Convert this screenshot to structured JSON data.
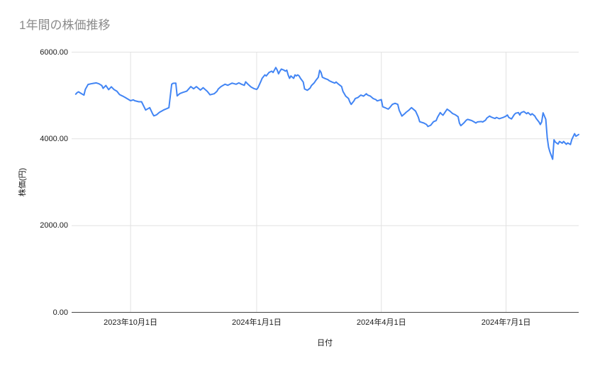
{
  "page": {
    "background": "#ffffff"
  },
  "chart_data": {
    "type": "line",
    "title": "1年間の株価推移",
    "xlabel": "日付",
    "ylabel": "株価(円)",
    "legend": "none",
    "grid": true,
    "ylim": [
      0,
      6000
    ],
    "x_range": [
      "2023-08-19",
      "2024-08-23"
    ],
    "y_ticks": [
      {
        "value": 0,
        "label": "0.00"
      },
      {
        "value": 2000,
        "label": "2000.00"
      },
      {
        "value": 4000,
        "label": "4000.00"
      },
      {
        "value": 6000,
        "label": "6000.00"
      }
    ],
    "x_ticks": [
      {
        "date": "2023-10-01",
        "label": "2023年10月1日"
      },
      {
        "date": "2024-01-01",
        "label": "2024年1月1日"
      },
      {
        "date": "2024-04-01",
        "label": "2024年4月1日"
      },
      {
        "date": "2024-07-01",
        "label": "2024年7月1日"
      }
    ],
    "line_color": "#4285f4",
    "grid_color": "#e2e2e2",
    "axis_line_color": "#444444",
    "title_color": "#8b8b8b",
    "label_color": "#1a1a1a",
    "series": [
      {
        "name": "株価",
        "points": [
          [
            "2023-08-22",
            5030
          ],
          [
            "2023-08-23",
            5065
          ],
          [
            "2023-08-24",
            5085
          ],
          [
            "2023-08-26",
            5045
          ],
          [
            "2023-08-28",
            5010
          ],
          [
            "2023-08-29",
            5140
          ],
          [
            "2023-08-31",
            5255
          ],
          [
            "2023-09-02",
            5270
          ],
          [
            "2023-09-04",
            5280
          ],
          [
            "2023-09-06",
            5290
          ],
          [
            "2023-09-08",
            5270
          ],
          [
            "2023-09-10",
            5230
          ],
          [
            "2023-09-11",
            5165
          ],
          [
            "2023-09-13",
            5230
          ],
          [
            "2023-09-15",
            5135
          ],
          [
            "2023-09-17",
            5200
          ],
          [
            "2023-09-19",
            5135
          ],
          [
            "2023-09-21",
            5100
          ],
          [
            "2023-09-23",
            5020
          ],
          [
            "2023-09-25",
            4990
          ],
          [
            "2023-09-27",
            4955
          ],
          [
            "2023-10-01",
            4880
          ],
          [
            "2023-10-03",
            4900
          ],
          [
            "2023-10-04",
            4880
          ],
          [
            "2023-10-07",
            4855
          ],
          [
            "2023-10-09",
            4855
          ],
          [
            "2023-10-12",
            4665
          ],
          [
            "2023-10-15",
            4720
          ],
          [
            "2023-10-17",
            4585
          ],
          [
            "2023-10-18",
            4530
          ],
          [
            "2023-10-20",
            4555
          ],
          [
            "2023-10-22",
            4610
          ],
          [
            "2023-10-25",
            4665
          ],
          [
            "2023-10-27",
            4690
          ],
          [
            "2023-10-29",
            4720
          ],
          [
            "2023-10-31",
            5260
          ],
          [
            "2023-11-01",
            5280
          ],
          [
            "2023-11-03",
            5285
          ],
          [
            "2023-11-04",
            4990
          ],
          [
            "2023-11-06",
            5045
          ],
          [
            "2023-11-08",
            5070
          ],
          [
            "2023-11-11",
            5100
          ],
          [
            "2023-11-14",
            5205
          ],
          [
            "2023-11-16",
            5155
          ],
          [
            "2023-11-18",
            5205
          ],
          [
            "2023-11-21",
            5125
          ],
          [
            "2023-11-23",
            5180
          ],
          [
            "2023-11-26",
            5095
          ],
          [
            "2023-11-28",
            5015
          ],
          [
            "2023-12-01",
            5040
          ],
          [
            "2023-12-03",
            5095
          ],
          [
            "2023-12-04",
            5150
          ],
          [
            "2023-12-06",
            5205
          ],
          [
            "2023-12-09",
            5260
          ],
          [
            "2023-12-11",
            5235
          ],
          [
            "2023-12-14",
            5285
          ],
          [
            "2023-12-17",
            5260
          ],
          [
            "2023-12-19",
            5290
          ],
          [
            "2023-12-21",
            5260
          ],
          [
            "2023-12-23",
            5235
          ],
          [
            "2023-12-24",
            5315
          ],
          [
            "2023-12-26",
            5250
          ],
          [
            "2023-12-28",
            5195
          ],
          [
            "2023-12-30",
            5160
          ],
          [
            "2024-01-01",
            5140
          ],
          [
            "2024-01-02",
            5180
          ],
          [
            "2024-01-04",
            5320
          ],
          [
            "2024-01-05",
            5395
          ],
          [
            "2024-01-07",
            5475
          ],
          [
            "2024-01-08",
            5450
          ],
          [
            "2024-01-10",
            5530
          ],
          [
            "2024-01-12",
            5560
          ],
          [
            "2024-01-13",
            5530
          ],
          [
            "2024-01-15",
            5645
          ],
          [
            "2024-01-16",
            5585
          ],
          [
            "2024-01-17",
            5500
          ],
          [
            "2024-01-18",
            5560
          ],
          [
            "2024-01-19",
            5610
          ],
          [
            "2024-01-21",
            5585
          ],
          [
            "2024-01-22",
            5560
          ],
          [
            "2024-01-23",
            5585
          ],
          [
            "2024-01-24",
            5475
          ],
          [
            "2024-01-25",
            5395
          ],
          [
            "2024-01-26",
            5450
          ],
          [
            "2024-01-28",
            5395
          ],
          [
            "2024-01-29",
            5475
          ],
          [
            "2024-01-30",
            5450
          ],
          [
            "2024-01-31",
            5475
          ],
          [
            "2024-02-01",
            5450
          ],
          [
            "2024-02-02",
            5395
          ],
          [
            "2024-02-04",
            5310
          ],
          [
            "2024-02-05",
            5150
          ],
          [
            "2024-02-07",
            5120
          ],
          [
            "2024-02-09",
            5170
          ],
          [
            "2024-02-10",
            5230
          ],
          [
            "2024-02-12",
            5290
          ],
          [
            "2024-02-13",
            5340
          ],
          [
            "2024-02-15",
            5420
          ],
          [
            "2024-02-16",
            5580
          ],
          [
            "2024-02-17",
            5530
          ],
          [
            "2024-02-18",
            5420
          ],
          [
            "2024-02-20",
            5390
          ],
          [
            "2024-02-22",
            5365
          ],
          [
            "2024-02-23",
            5340
          ],
          [
            "2024-02-25",
            5310
          ],
          [
            "2024-02-27",
            5285
          ],
          [
            "2024-02-28",
            5310
          ],
          [
            "2024-03-01",
            5255
          ],
          [
            "2024-03-03",
            5205
          ],
          [
            "2024-03-04",
            5095
          ],
          [
            "2024-03-06",
            4985
          ],
          [
            "2024-03-08",
            4930
          ],
          [
            "2024-03-09",
            4850
          ],
          [
            "2024-03-10",
            4795
          ],
          [
            "2024-03-12",
            4875
          ],
          [
            "2024-03-13",
            4930
          ],
          [
            "2024-03-15",
            4955
          ],
          [
            "2024-03-17",
            5010
          ],
          [
            "2024-03-19",
            4985
          ],
          [
            "2024-03-21",
            5040
          ],
          [
            "2024-03-22",
            5010
          ],
          [
            "2024-03-24",
            4985
          ],
          [
            "2024-03-26",
            4930
          ],
          [
            "2024-03-28",
            4905
          ],
          [
            "2024-03-29",
            4875
          ],
          [
            "2024-04-01",
            4905
          ],
          [
            "2024-04-02",
            4740
          ],
          [
            "2024-04-04",
            4715
          ],
          [
            "2024-04-06",
            4685
          ],
          [
            "2024-04-07",
            4715
          ],
          [
            "2024-04-09",
            4795
          ],
          [
            "2024-04-11",
            4820
          ],
          [
            "2024-04-13",
            4795
          ],
          [
            "2024-04-14",
            4660
          ],
          [
            "2024-04-16",
            4525
          ],
          [
            "2024-04-18",
            4580
          ],
          [
            "2024-04-19",
            4610
          ],
          [
            "2024-04-21",
            4660
          ],
          [
            "2024-04-23",
            4720
          ],
          [
            "2024-04-26",
            4640
          ],
          [
            "2024-04-28",
            4500
          ],
          [
            "2024-04-29",
            4395
          ],
          [
            "2024-05-02",
            4365
          ],
          [
            "2024-05-04",
            4330
          ],
          [
            "2024-05-05",
            4285
          ],
          [
            "2024-05-07",
            4315
          ],
          [
            "2024-05-09",
            4395
          ],
          [
            "2024-05-11",
            4420
          ],
          [
            "2024-05-12",
            4500
          ],
          [
            "2024-05-14",
            4605
          ],
          [
            "2024-05-15",
            4570
          ],
          [
            "2024-05-16",
            4545
          ],
          [
            "2024-05-18",
            4640
          ],
          [
            "2024-05-19",
            4685
          ],
          [
            "2024-05-21",
            4640
          ],
          [
            "2024-05-23",
            4585
          ],
          [
            "2024-05-25",
            4555
          ],
          [
            "2024-05-27",
            4510
          ],
          [
            "2024-05-28",
            4360
          ],
          [
            "2024-05-29",
            4305
          ],
          [
            "2024-05-31",
            4360
          ],
          [
            "2024-06-01",
            4395
          ],
          [
            "2024-06-02",
            4430
          ],
          [
            "2024-06-03",
            4450
          ],
          [
            "2024-06-05",
            4430
          ],
          [
            "2024-06-06",
            4420
          ],
          [
            "2024-06-08",
            4385
          ],
          [
            "2024-06-09",
            4365
          ],
          [
            "2024-06-10",
            4390
          ],
          [
            "2024-06-11",
            4395
          ],
          [
            "2024-06-13",
            4400
          ],
          [
            "2024-06-14",
            4390
          ],
          [
            "2024-06-16",
            4430
          ],
          [
            "2024-06-17",
            4480
          ],
          [
            "2024-06-19",
            4525
          ],
          [
            "2024-06-20",
            4505
          ],
          [
            "2024-06-22",
            4480
          ],
          [
            "2024-06-23",
            4470
          ],
          [
            "2024-06-24",
            4495
          ],
          [
            "2024-06-26",
            4465
          ],
          [
            "2024-06-27",
            4475
          ],
          [
            "2024-06-29",
            4495
          ],
          [
            "2024-07-01",
            4525
          ],
          [
            "2024-07-02",
            4550
          ],
          [
            "2024-07-03",
            4495
          ],
          [
            "2024-07-05",
            4460
          ],
          [
            "2024-07-07",
            4560
          ],
          [
            "2024-07-08",
            4590
          ],
          [
            "2024-07-10",
            4605
          ],
          [
            "2024-07-11",
            4550
          ],
          [
            "2024-07-12",
            4605
          ],
          [
            "2024-07-14",
            4630
          ],
          [
            "2024-07-16",
            4580
          ],
          [
            "2024-07-17",
            4605
          ],
          [
            "2024-07-19",
            4550
          ],
          [
            "2024-07-20",
            4580
          ],
          [
            "2024-07-22",
            4525
          ],
          [
            "2024-07-23",
            4470
          ],
          [
            "2024-07-25",
            4390
          ],
          [
            "2024-07-26",
            4330
          ],
          [
            "2024-07-27",
            4390
          ],
          [
            "2024-07-28",
            4600
          ],
          [
            "2024-07-30",
            4450
          ],
          [
            "2024-07-31",
            4035
          ],
          [
            "2024-08-01",
            3810
          ],
          [
            "2024-08-02",
            3700
          ],
          [
            "2024-08-04",
            3530
          ],
          [
            "2024-08-05",
            3980
          ],
          [
            "2024-08-06",
            3925
          ],
          [
            "2024-08-08",
            3880
          ],
          [
            "2024-08-09",
            3940
          ],
          [
            "2024-08-11",
            3900
          ],
          [
            "2024-08-12",
            3940
          ],
          [
            "2024-08-14",
            3875
          ],
          [
            "2024-08-15",
            3905
          ],
          [
            "2024-08-17",
            3870
          ],
          [
            "2024-08-18",
            3985
          ],
          [
            "2024-08-20",
            4120
          ],
          [
            "2024-08-21",
            4060
          ],
          [
            "2024-08-23",
            4100
          ]
        ]
      }
    ]
  }
}
